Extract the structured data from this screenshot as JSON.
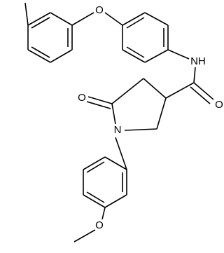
{
  "atoms": [
    {
      "label": "O"
    },
    {
      "label": "NH"
    },
    {
      "label": "O"
    },
    {
      "label": "N"
    },
    {
      "label": "O"
    },
    {
      "label": "O"
    }
  ]
}
